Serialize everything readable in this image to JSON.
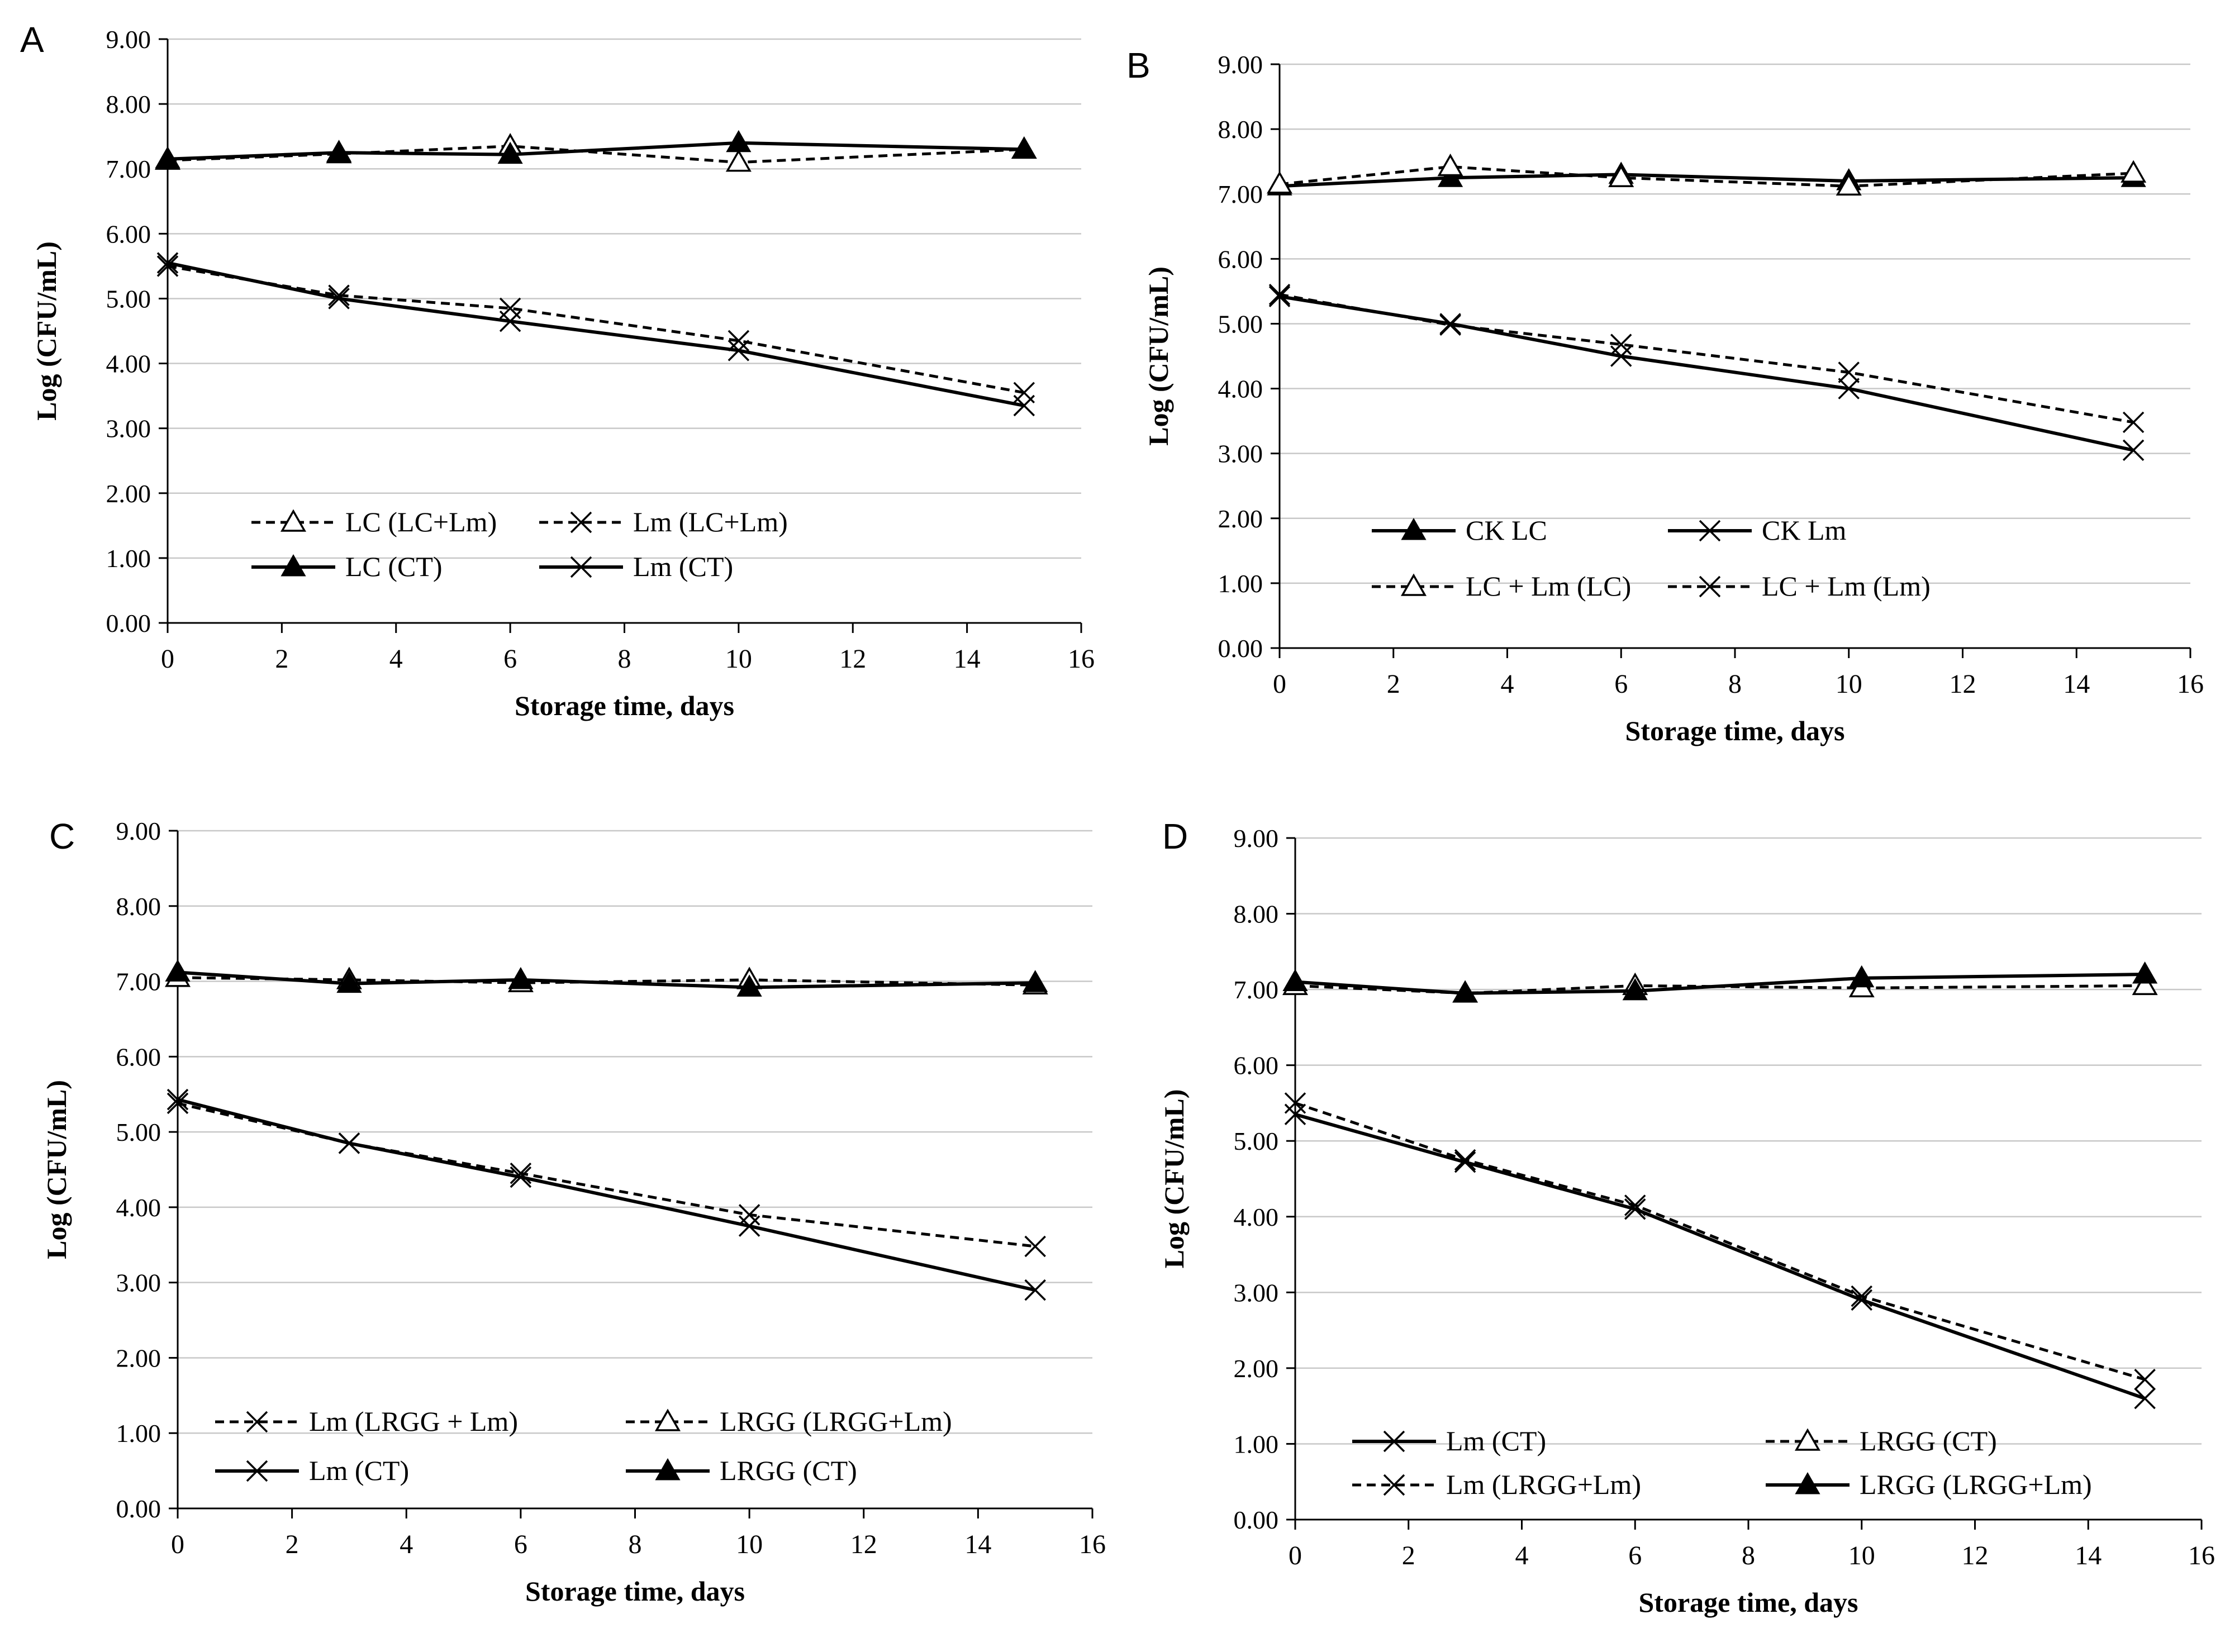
{
  "chart_data": [
    {
      "type": "line",
      "panel_label": "A",
      "xlabel": "Storage time, days",
      "ylabel": "Log (CFU/mL)",
      "xlim": [
        0,
        16
      ],
      "ylim": [
        0,
        9
      ],
      "x_ticks": [
        0,
        2,
        4,
        6,
        8,
        10,
        12,
        14,
        16
      ],
      "x_tick_labels": [
        "0",
        "2",
        "4",
        "6",
        "8",
        "10",
        "12",
        "14",
        "16"
      ],
      "y_ticks": [
        0,
        1,
        2,
        3,
        4,
        5,
        6,
        7,
        8,
        9
      ],
      "y_tick_labels": [
        "0.00",
        "1.00",
        "2.00",
        "3.00",
        "4.00",
        "5.00",
        "6.00",
        "7.00",
        "8.00",
        "9.00"
      ],
      "grid": "horizontal",
      "legend_position": "bottom-left",
      "x": [
        0,
        3,
        6,
        10,
        15
      ],
      "series": [
        {
          "name": "LC (LC+Lm)",
          "values": [
            7.13,
            7.23,
            7.35,
            7.1,
            7.3
          ],
          "line": "dashed",
          "marker": "triangle-open"
        },
        {
          "name": "Lm (LC+Lm)",
          "values": [
            5.5,
            5.05,
            4.85,
            4.35,
            3.55
          ],
          "line": "dashed",
          "marker": "x"
        },
        {
          "name": "LC (CT)",
          "values": [
            7.15,
            7.25,
            7.22,
            7.4,
            7.3
          ],
          "line": "solid",
          "marker": "triangle-filled"
        },
        {
          "name": "Lm (CT)",
          "values": [
            5.55,
            5.0,
            4.65,
            4.2,
            3.35
          ],
          "line": "solid",
          "marker": "x"
        }
      ]
    },
    {
      "type": "line",
      "panel_label": "B",
      "xlabel": "Storage time, days",
      "ylabel": "Log (CFU/mL)",
      "xlim": [
        0,
        16
      ],
      "ylim": [
        0,
        9
      ],
      "x_ticks": [
        0,
        2,
        4,
        6,
        8,
        10,
        12,
        14,
        16
      ],
      "x_tick_labels": [
        "0",
        "2",
        "4",
        "6",
        "8",
        "10",
        "12",
        "14",
        "16"
      ],
      "y_ticks": [
        0,
        1,
        2,
        3,
        4,
        5,
        6,
        7,
        8,
        9
      ],
      "y_tick_labels": [
        "0.00",
        "1.00",
        "2.00",
        "3.00",
        "4.00",
        "5.00",
        "6.00",
        "7.00",
        "8.00",
        "9.00"
      ],
      "grid": "horizontal",
      "legend_position": "bottom-left",
      "x": [
        0,
        3,
        6,
        10,
        15
      ],
      "series": [
        {
          "name": "CK LC",
          "values": [
            7.12,
            7.25,
            7.3,
            7.2,
            7.25
          ],
          "line": "solid",
          "marker": "triangle-filled"
        },
        {
          "name": "CK Lm",
          "values": [
            5.42,
            5.0,
            4.5,
            4.0,
            3.05
          ],
          "line": "solid",
          "marker": "x"
        },
        {
          "name": "LC + Lm (LC)",
          "values": [
            7.15,
            7.42,
            7.25,
            7.12,
            7.32
          ],
          "line": "dashed",
          "marker": "triangle-open"
        },
        {
          "name": "LC + Lm (Lm)",
          "values": [
            5.45,
            4.98,
            4.68,
            4.25,
            3.48
          ],
          "line": "dashed",
          "marker": "x"
        }
      ]
    },
    {
      "type": "line",
      "panel_label": "C",
      "xlabel": "Storage time, days",
      "ylabel": "Log (CFU/mL)",
      "xlim": [
        0,
        16
      ],
      "ylim": [
        0,
        9
      ],
      "x_ticks": [
        0,
        2,
        4,
        6,
        8,
        10,
        12,
        14,
        16
      ],
      "x_tick_labels": [
        "0",
        "2",
        "4",
        "6",
        "8",
        "10",
        "12",
        "14",
        "16"
      ],
      "y_ticks": [
        0,
        1,
        2,
        3,
        4,
        5,
        6,
        7,
        8,
        9
      ],
      "y_tick_labels": [
        "0.00",
        "1.00",
        "2.00",
        "3.00",
        "4.00",
        "5.00",
        "6.00",
        "7.00",
        "8.00",
        "9.00"
      ],
      "grid": "horizontal",
      "legend_position": "bottom-left",
      "x": [
        0,
        3,
        6,
        10,
        15
      ],
      "series": [
        {
          "name": "Lm (LRGG + Lm)",
          "values": [
            5.38,
            4.85,
            4.45,
            3.9,
            3.48
          ],
          "line": "dashed",
          "marker": "x"
        },
        {
          "name": "LRGG (LRGG+Lm)",
          "values": [
            7.05,
            7.02,
            6.98,
            7.02,
            6.95
          ],
          "line": "dashed",
          "marker": "triangle-open"
        },
        {
          "name": "Lm (CT)",
          "values": [
            5.43,
            4.85,
            4.4,
            3.75,
            2.9
          ],
          "line": "solid",
          "marker": "x"
        },
        {
          "name": "LRGG (CT)",
          "values": [
            7.12,
            6.97,
            7.02,
            6.92,
            6.98
          ],
          "line": "solid",
          "marker": "triangle-filled"
        }
      ]
    },
    {
      "type": "line",
      "panel_label": "D",
      "xlabel": "Storage time, days",
      "ylabel": "Log (CFU/mL)",
      "xlim": [
        0,
        16
      ],
      "ylim": [
        0,
        9
      ],
      "x_ticks": [
        0,
        2,
        4,
        6,
        8,
        10,
        12,
        14,
        16
      ],
      "x_tick_labels": [
        "0",
        "2",
        "4",
        "6",
        "8",
        "10",
        "12",
        "14",
        "16"
      ],
      "y_ticks": [
        0,
        1,
        2,
        3,
        4,
        5,
        6,
        7,
        8,
        9
      ],
      "y_tick_labels": [
        "0.00",
        "1.00",
        "2.00",
        "3.00",
        "4.00",
        "5.00",
        "6.00",
        "7.00",
        "8.00",
        "9.00"
      ],
      "grid": "horizontal",
      "legend_position": "bottom-left",
      "x": [
        0,
        3,
        6,
        10,
        15
      ],
      "series": [
        {
          "name": "Lm (CT)",
          "values": [
            5.35,
            4.72,
            4.1,
            2.9,
            1.6
          ],
          "line": "solid",
          "marker": "x"
        },
        {
          "name": "LRGG (CT)",
          "values": [
            7.05,
            6.95,
            7.05,
            7.02,
            7.05
          ],
          "line": "dashed",
          "marker": "triangle-open"
        },
        {
          "name": "Lm (LRGG+Lm)",
          "values": [
            5.5,
            4.75,
            4.15,
            2.95,
            1.85
          ],
          "line": "dashed",
          "marker": "x"
        },
        {
          "name": "LRGG (LRGG+Lm)",
          "values": [
            7.1,
            6.95,
            6.98,
            7.15,
            7.2
          ],
          "line": "solid",
          "marker": "triangle-filled"
        }
      ]
    }
  ]
}
